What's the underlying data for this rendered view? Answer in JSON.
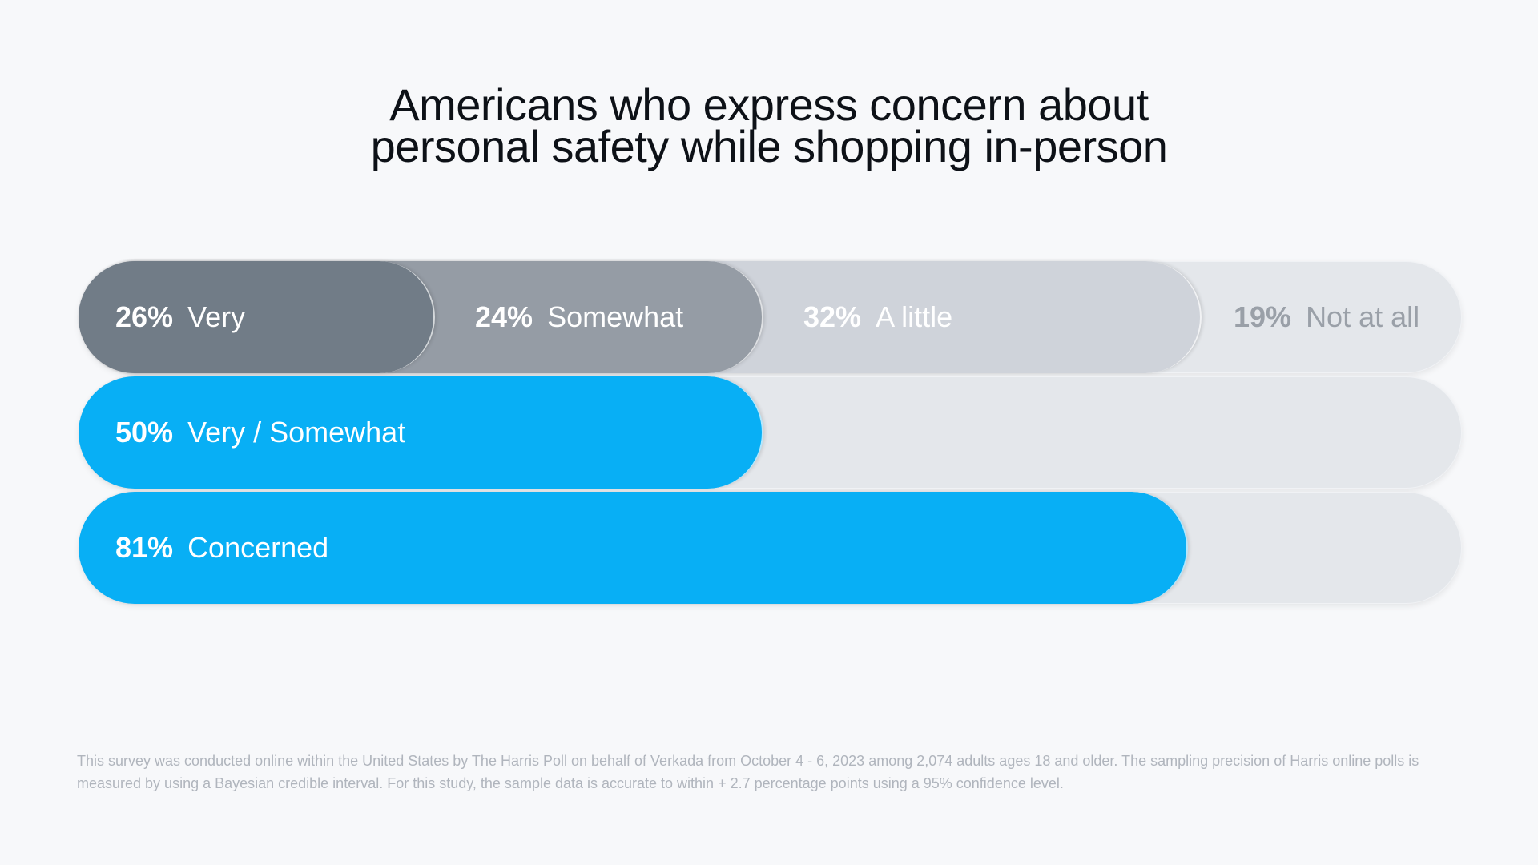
{
  "title": {
    "line1": "Americans who express concern about",
    "line2": "personal safety while shopping in-person"
  },
  "chart_data": {
    "type": "bar",
    "title": "Americans who express concern about personal safety while shopping in-person",
    "orientation": "horizontal",
    "stacked": true,
    "xlim": [
      0,
      101
    ],
    "rows": [
      {
        "segments": [
          {
            "pct": "26%",
            "value": 26,
            "label": "Very",
            "color": "#717c87",
            "text_color": "#ffffff"
          },
          {
            "pct": "24%",
            "value": 24,
            "label": "Somewhat",
            "color": "#959ca5",
            "text_color": "#ffffff"
          },
          {
            "pct": "32%",
            "value": 32,
            "label": "A little",
            "color": "#cfd3da",
            "text_color": "#ffffff"
          },
          {
            "pct": "19%",
            "value": 19,
            "label": "Not at all",
            "color": "#e4e7eb",
            "text_color": "#9aa0a8"
          }
        ]
      },
      {
        "segments": [
          {
            "pct": "50%",
            "value": 50,
            "label": "Very / Somewhat",
            "color": "#08aff5",
            "text_color": "#ffffff"
          }
        ]
      },
      {
        "segments": [
          {
            "pct": "81%",
            "value": 81,
            "label": "Concerned",
            "color": "#08aff5",
            "text_color": "#ffffff"
          }
        ]
      }
    ]
  },
  "footnote": "This survey was conducted online within the United States by The Harris Poll on behalf of Verkada from October 4 - 6, 2023 among 2,074 adults ages 18 and older. The sampling precision of Harris online polls is measured by using a Bayesian credible interval. For this study, the sample data is accurate to within + 2.7 percentage points using a 95% confidence level."
}
